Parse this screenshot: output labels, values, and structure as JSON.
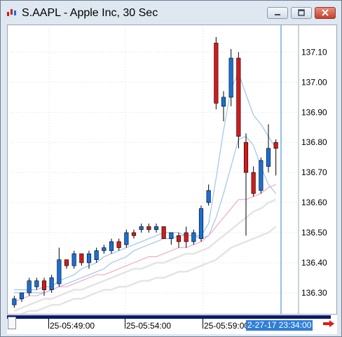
{
  "window": {
    "title": "S.AAPL - Apple Inc, 30 Sec",
    "icon": "candlestick-chart-icon",
    "buttons": [
      "minimize-icon",
      "maximize-icon",
      "close-icon"
    ]
  },
  "timebar": {
    "labels": [
      "25-05:49:00",
      "25-05:54:00",
      "25-05:59:00"
    ],
    "cursor_label": "2-27-17 23:34:00",
    "scroll_icon": "scroll-thumb",
    "next_icon": "right-arrow-icon"
  },
  "colors": {
    "up": "#1a6fd6",
    "down": "#d11b1b",
    "grid": "#d9d9d9",
    "cursor": "#2f7fd7",
    "ma_short": "#9ec5ea",
    "ma_medium": "#f2a9c4",
    "ma_long": "#e4e4e4"
  },
  "chart_data": {
    "type": "candlestick",
    "title": "S.AAPL - Apple Inc, 30 Sec",
    "ylim": [
      136.23,
      137.18
    ],
    "y_ticks": [
      136.3,
      136.4,
      136.5,
      136.6,
      136.7,
      136.8,
      136.9,
      137.0,
      137.1
    ],
    "y_tick_labels": [
      "136.30",
      "136.40",
      "136.50",
      "136.60",
      "136.70",
      "136.80",
      "136.90",
      "137.00",
      "137.10"
    ],
    "x_tick_labels": [
      "25-05:49:00",
      "25-05:54:00",
      "25-05:59:00"
    ],
    "grid": true,
    "candles": [
      {
        "o": 136.26,
        "h": 136.29,
        "l": 136.25,
        "c": 136.28
      },
      {
        "o": 136.28,
        "h": 136.3,
        "l": 136.27,
        "c": 136.3
      },
      {
        "o": 136.3,
        "h": 136.35,
        "l": 136.29,
        "c": 136.34
      },
      {
        "o": 136.32,
        "h": 136.35,
        "l": 136.31,
        "c": 136.34
      },
      {
        "o": 136.34,
        "h": 136.35,
        "l": 136.29,
        "c": 136.31
      },
      {
        "o": 136.31,
        "h": 136.36,
        "l": 136.3,
        "c": 136.35
      },
      {
        "o": 136.33,
        "h": 136.45,
        "l": 136.32,
        "c": 136.41
      },
      {
        "o": 136.41,
        "h": 136.41,
        "l": 136.38,
        "c": 136.39
      },
      {
        "o": 136.39,
        "h": 136.44,
        "l": 136.38,
        "c": 136.43
      },
      {
        "o": 136.43,
        "h": 136.43,
        "l": 136.39,
        "c": 136.4
      },
      {
        "o": 136.4,
        "h": 136.44,
        "l": 136.38,
        "c": 136.43
      },
      {
        "o": 136.41,
        "h": 136.45,
        "l": 136.4,
        "c": 136.44
      },
      {
        "o": 136.44,
        "h": 136.46,
        "l": 136.43,
        "c": 136.45
      },
      {
        "o": 136.44,
        "h": 136.48,
        "l": 136.43,
        "c": 136.47
      },
      {
        "o": 136.47,
        "h": 136.48,
        "l": 136.44,
        "c": 136.45
      },
      {
        "o": 136.46,
        "h": 136.51,
        "l": 136.45,
        "c": 136.5
      },
      {
        "o": 136.5,
        "h": 136.51,
        "l": 136.48,
        "c": 136.49
      },
      {
        "o": 136.51,
        "h": 136.53,
        "l": 136.5,
        "c": 136.52
      },
      {
        "o": 136.52,
        "h": 136.53,
        "l": 136.5,
        "c": 136.51
      },
      {
        "o": 136.51,
        "h": 136.53,
        "l": 136.5,
        "c": 136.52
      },
      {
        "o": 136.52,
        "h": 136.52,
        "l": 136.48,
        "c": 136.48
      },
      {
        "o": 136.48,
        "h": 136.5,
        "l": 136.46,
        "c": 136.5
      },
      {
        "o": 136.49,
        "h": 136.5,
        "l": 136.45,
        "c": 136.47
      },
      {
        "o": 136.5,
        "h": 136.52,
        "l": 136.45,
        "c": 136.47
      },
      {
        "o": 136.47,
        "h": 136.51,
        "l": 136.46,
        "c": 136.5
      },
      {
        "o": 136.48,
        "h": 136.59,
        "l": 136.47,
        "c": 136.58
      },
      {
        "o": 136.6,
        "h": 136.66,
        "l": 136.59,
        "c": 136.64
      },
      {
        "o": 137.13,
        "h": 137.15,
        "l": 136.91,
        "c": 136.93
      },
      {
        "o": 136.92,
        "h": 136.97,
        "l": 136.87,
        "c": 136.95
      },
      {
        "o": 136.95,
        "h": 137.11,
        "l": 136.92,
        "c": 137.08
      },
      {
        "o": 137.08,
        "h": 137.1,
        "l": 136.78,
        "c": 136.82
      },
      {
        "o": 136.8,
        "h": 136.83,
        "l": 136.49,
        "c": 136.7
      },
      {
        "o": 136.7,
        "h": 136.72,
        "l": 136.62,
        "c": 136.63
      },
      {
        "o": 136.64,
        "h": 136.75,
        "l": 136.63,
        "c": 136.74
      },
      {
        "o": 136.72,
        "h": 136.86,
        "l": 136.7,
        "c": 136.78
      },
      {
        "o": 136.8,
        "h": 136.81,
        "l": 136.69,
        "c": 136.78
      }
    ],
    "series": [
      {
        "style": "ma_short",
        "values": [
          136.31,
          136.31,
          136.31,
          136.31,
          136.32,
          136.32,
          136.34,
          136.35,
          136.36,
          136.38,
          136.39,
          136.4,
          136.42,
          136.43,
          136.44,
          136.45,
          136.46,
          136.47,
          136.48,
          136.49,
          136.5,
          136.5,
          136.5,
          136.49,
          136.49,
          136.49,
          136.53,
          136.68,
          136.84,
          136.98,
          137.03,
          136.96,
          136.89,
          136.86,
          136.82,
          136.78
        ]
      },
      {
        "style": "ma_short",
        "values": [
          136.3,
          136.3,
          136.3,
          136.3,
          136.3,
          136.31,
          136.32,
          136.33,
          136.34,
          136.35,
          136.36,
          136.37,
          136.38,
          136.4,
          136.41,
          136.42,
          136.44,
          136.45,
          136.46,
          136.47,
          136.48,
          136.48,
          136.49,
          136.49,
          136.49,
          136.48,
          136.49,
          136.55,
          136.63,
          136.72,
          136.81,
          136.82,
          136.79,
          136.72,
          136.66,
          136.63
        ]
      },
      {
        "style": "ma_medium",
        "values": [
          136.27,
          136.28,
          136.29,
          136.29,
          136.3,
          136.31,
          136.32,
          136.32,
          136.33,
          136.34,
          136.35,
          136.36,
          136.36,
          136.37,
          136.38,
          136.39,
          136.4,
          136.41,
          136.42,
          136.42,
          136.43,
          136.44,
          136.45,
          136.45,
          136.46,
          136.47,
          136.49,
          136.52,
          136.55,
          136.58,
          136.61,
          136.61,
          136.62,
          136.63,
          136.65,
          136.66
        ]
      },
      {
        "style": "ma_long",
        "values": [
          136.24,
          136.25,
          136.26,
          136.27,
          136.28,
          136.28,
          136.29,
          136.3,
          136.31,
          136.31,
          136.32,
          136.33,
          136.34,
          136.35,
          136.36,
          136.37,
          136.38,
          136.38,
          136.39,
          136.4,
          136.4,
          136.41,
          136.42,
          136.43,
          136.43,
          136.44,
          136.45,
          136.47,
          136.49,
          136.51,
          136.53,
          136.55,
          136.57,
          136.58,
          136.6,
          136.61
        ]
      },
      {
        "style": "ma_long",
        "values": [
          136.22,
          136.23,
          136.24,
          136.24,
          136.25,
          136.26,
          136.26,
          136.27,
          136.28,
          136.28,
          136.29,
          136.3,
          136.31,
          136.31,
          136.32,
          136.32,
          136.33,
          136.34,
          136.34,
          136.35,
          136.35,
          136.36,
          136.37,
          136.37,
          136.38,
          136.39,
          136.4,
          136.41,
          136.43,
          136.45,
          136.46,
          136.47,
          136.48,
          136.49,
          136.5,
          136.52
        ]
      }
    ]
  }
}
